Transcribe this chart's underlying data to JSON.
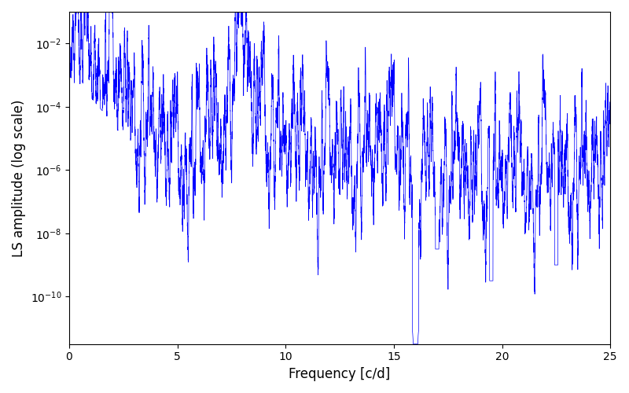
{
  "xlabel": "Frequency [c/d]",
  "ylabel": "LS amplitude (log scale)",
  "title": "",
  "line_color": "#0000ff",
  "line_width": 0.5,
  "xlim": [
    0,
    25
  ],
  "ylim_log": [
    -11.5,
    -1.0
  ],
  "xfreq_max": 25,
  "num_points": 8000,
  "background_color": "#ffffff",
  "figsize": [
    8.0,
    5.0
  ],
  "dpi": 100
}
